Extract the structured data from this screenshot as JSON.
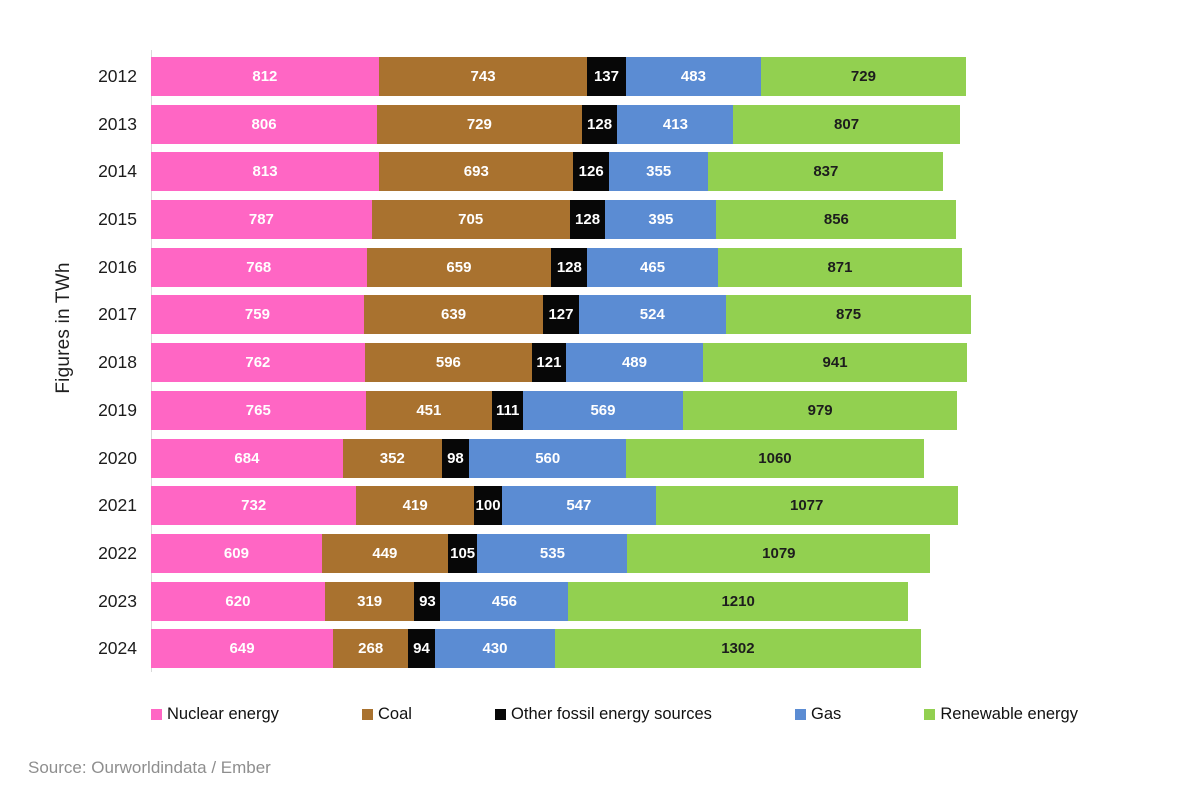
{
  "chart_data": {
    "type": "bar",
    "orientation": "horizontal",
    "stacked": true,
    "title": "",
    "ylabel": "Figures in TWh",
    "xlabel": "",
    "xlim": [
      0,
      3600
    ],
    "grid": false,
    "legend_position": "bottom",
    "categories": [
      "2012",
      "2013",
      "2014",
      "2015",
      "2016",
      "2017",
      "2018",
      "2019",
      "2020",
      "2021",
      "2022",
      "2023",
      "2024"
    ],
    "series": [
      {
        "name": "Nuclear energy",
        "color": "#FF66C4",
        "label_color": "#ffffff",
        "values": [
          812,
          806,
          813,
          787,
          768,
          759,
          762,
          765,
          684,
          732,
          609,
          620,
          649
        ]
      },
      {
        "name": "Coal",
        "color": "#A9722F",
        "label_color": "#ffffff",
        "values": [
          743,
          729,
          693,
          705,
          659,
          639,
          596,
          451,
          352,
          419,
          449,
          319,
          268
        ]
      },
      {
        "name": "Other fossil energy sources",
        "color": "#070707",
        "label_color": "#ffffff",
        "values": [
          137,
          128,
          126,
          128,
          128,
          127,
          121,
          111,
          98,
          100,
          105,
          93,
          94
        ]
      },
      {
        "name": "Gas",
        "color": "#5B8CD3",
        "label_color": "#ffffff",
        "values": [
          483,
          413,
          355,
          395,
          465,
          524,
          489,
          569,
          560,
          547,
          535,
          456,
          430
        ]
      },
      {
        "name": "Renewable energy",
        "color": "#92D050",
        "label_color": "#1d1d1d",
        "values": [
          729,
          807,
          837,
          856,
          871,
          875,
          941,
          979,
          1060,
          1077,
          1079,
          1210,
          1302
        ]
      }
    ]
  },
  "footer": {
    "source": "Source: Ourworldindata / Ember"
  }
}
